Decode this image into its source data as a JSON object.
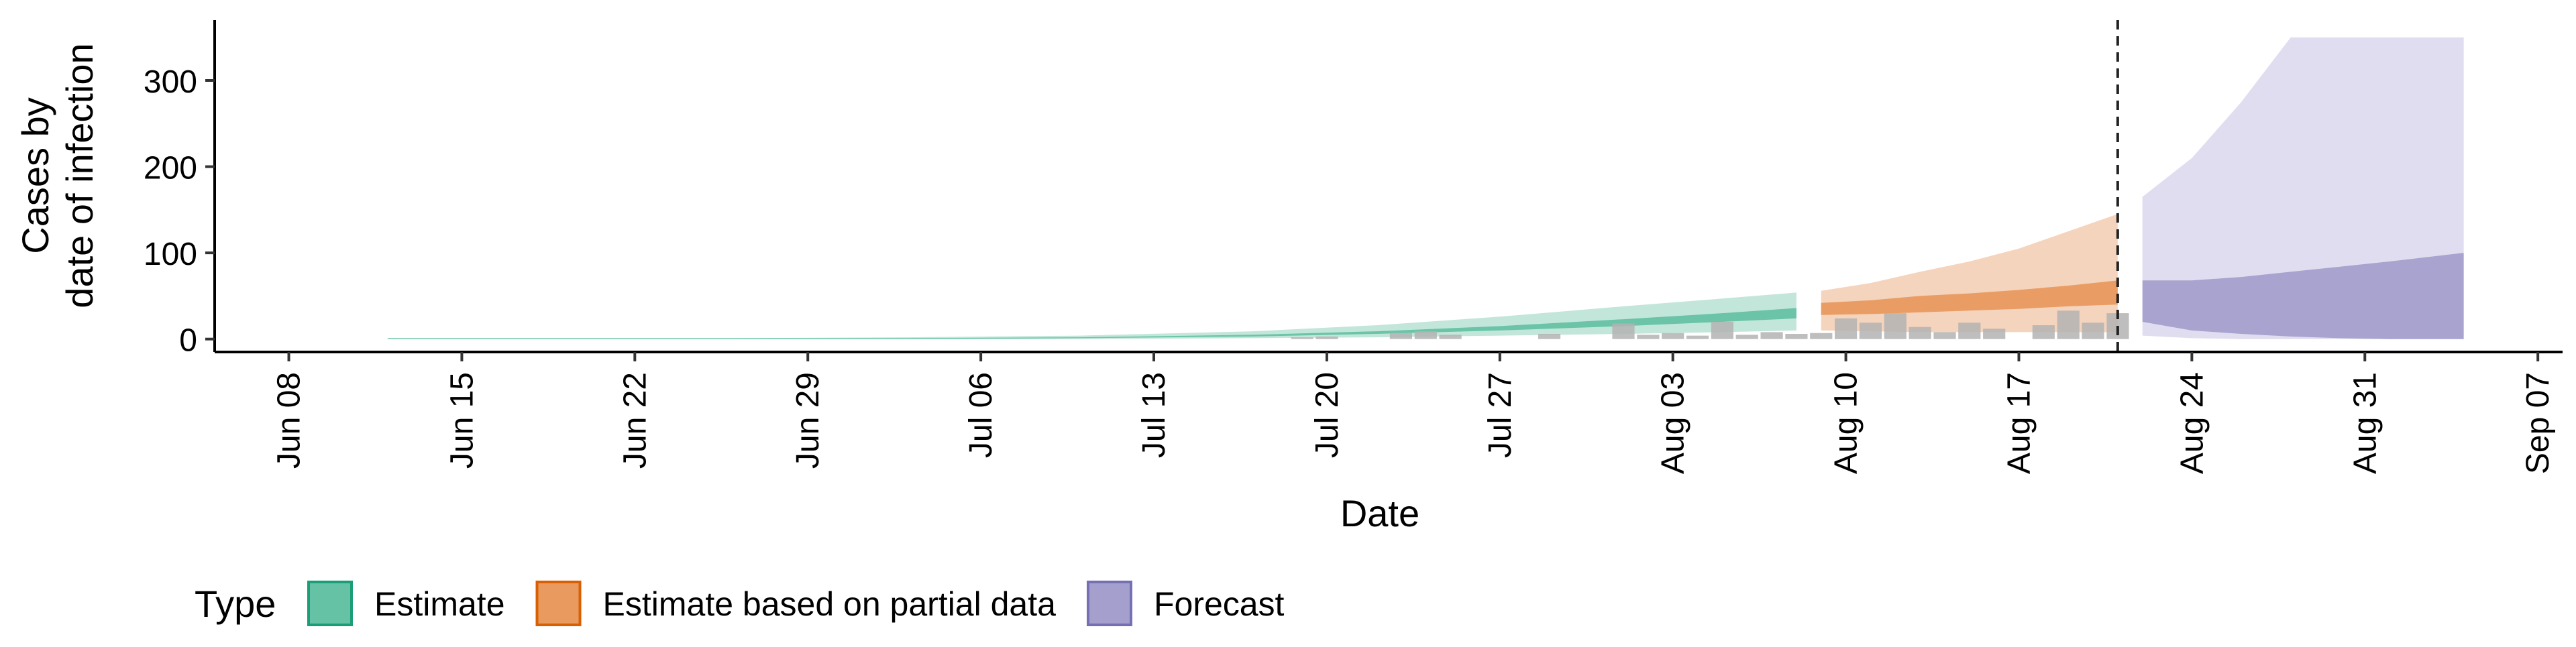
{
  "chart_data": {
    "type": "area",
    "xlabel": "Date",
    "ylabel_lines": [
      "Cases by",
      "date of infection"
    ],
    "x_range": [
      "2020-06-05",
      "2020-09-08"
    ],
    "ylim": [
      -15,
      370
    ],
    "x_ticks": [
      {
        "date": "2020-06-08",
        "label": "Jun 08"
      },
      {
        "date": "2020-06-15",
        "label": "Jun 15"
      },
      {
        "date": "2020-06-22",
        "label": "Jun 22"
      },
      {
        "date": "2020-06-29",
        "label": "Jun 29"
      },
      {
        "date": "2020-07-06",
        "label": "Jul 06"
      },
      {
        "date": "2020-07-13",
        "label": "Jul 13"
      },
      {
        "date": "2020-07-20",
        "label": "Jul 20"
      },
      {
        "date": "2020-07-27",
        "label": "Jul 27"
      },
      {
        "date": "2020-08-03",
        "label": "Aug 03"
      },
      {
        "date": "2020-08-10",
        "label": "Aug 10"
      },
      {
        "date": "2020-08-17",
        "label": "Aug 17"
      },
      {
        "date": "2020-08-24",
        "label": "Aug 24"
      },
      {
        "date": "2020-08-31",
        "label": "Aug 31"
      },
      {
        "date": "2020-09-07",
        "label": "Sep 07"
      }
    ],
    "y_ticks": [
      0,
      100,
      200,
      300
    ],
    "grid": false,
    "vline_date": "2020-08-21",
    "legend": {
      "title": "Type",
      "position": "bottom-left",
      "items": [
        {
          "label": "Estimate",
          "key": "estimate",
          "color": "#66c2a5",
          "border": "#1b9e77"
        },
        {
          "label": "Estimate based on partial data",
          "key": "partial",
          "color": "#e89a5f",
          "border": "#d95f02"
        },
        {
          "label": "Forecast",
          "key": "forecast",
          "color": "#a49fcc",
          "border": "#7570b3"
        }
      ]
    },
    "series": [
      {
        "name": "Estimate",
        "key": "estimate",
        "color_outer": "#b8e2d4",
        "color_inner": "#66c2a5",
        "dates": [
          "2020-06-12",
          "2020-06-19",
          "2020-06-26",
          "2020-07-03",
          "2020-07-10",
          "2020-07-17",
          "2020-07-22",
          "2020-07-27",
          "2020-08-01",
          "2020-08-05",
          "2020-08-08"
        ],
        "outer_lo": [
          0,
          0,
          0,
          0,
          0,
          1,
          2,
          4,
          6,
          8,
          10
        ],
        "outer_hi": [
          1,
          1,
          1,
          2,
          4,
          9,
          16,
          26,
          38,
          47,
          54
        ],
        "inner_lo": [
          0,
          0,
          0,
          0,
          1,
          3,
          6,
          10,
          15,
          20,
          24
        ],
        "inner_hi": [
          1,
          1,
          1,
          1,
          2,
          5,
          9,
          15,
          23,
          30,
          36
        ]
      },
      {
        "name": "Estimate based on partial data",
        "key": "partial",
        "color_outer": "#f3cdb2",
        "color_inner": "#e89a5f",
        "dates": [
          "2020-08-09",
          "2020-08-11",
          "2020-08-13",
          "2020-08-15",
          "2020-08-17",
          "2020-08-19",
          "2020-08-21"
        ],
        "outer_lo": [
          10,
          9,
          8,
          8,
          8,
          8,
          8
        ],
        "outer_hi": [
          56,
          65,
          78,
          90,
          105,
          125,
          145
        ],
        "inner_lo": [
          28,
          29,
          31,
          33,
          35,
          38,
          40
        ],
        "inner_hi": [
          42,
          45,
          50,
          53,
          57,
          62,
          68
        ]
      },
      {
        "name": "Forecast",
        "key": "forecast",
        "color_outer": "#d9d7ec",
        "color_inner": "#a49fcc",
        "dates": [
          "2020-08-22",
          "2020-08-24",
          "2020-08-26",
          "2020-08-28",
          "2020-08-30",
          "2020-09-01",
          "2020-09-04"
        ],
        "outer_lo": [
          4,
          1,
          0,
          0,
          0,
          0,
          0
        ],
        "outer_hi": [
          165,
          210,
          275,
          350,
          350,
          350,
          350
        ],
        "inner_lo": [
          20,
          10,
          6,
          3,
          1,
          0,
          0
        ],
        "inner_hi": [
          68,
          68,
          72,
          78,
          84,
          90,
          100
        ]
      }
    ],
    "reported_cases": [
      {
        "date": "2020-07-19",
        "value": 2
      },
      {
        "date": "2020-07-20",
        "value": 3
      },
      {
        "date": "2020-07-23",
        "value": 7
      },
      {
        "date": "2020-07-24",
        "value": 9
      },
      {
        "date": "2020-07-25",
        "value": 5
      },
      {
        "date": "2020-07-29",
        "value": 6
      },
      {
        "date": "2020-08-01",
        "value": 18
      },
      {
        "date": "2020-08-02",
        "value": 5
      },
      {
        "date": "2020-08-03",
        "value": 7
      },
      {
        "date": "2020-08-04",
        "value": 4
      },
      {
        "date": "2020-08-05",
        "value": 20
      },
      {
        "date": "2020-08-06",
        "value": 5
      },
      {
        "date": "2020-08-07",
        "value": 8
      },
      {
        "date": "2020-08-08",
        "value": 6
      },
      {
        "date": "2020-08-09",
        "value": 7
      },
      {
        "date": "2020-08-10",
        "value": 24
      },
      {
        "date": "2020-08-11",
        "value": 19
      },
      {
        "date": "2020-08-12",
        "value": 30
      },
      {
        "date": "2020-08-13",
        "value": 14
      },
      {
        "date": "2020-08-14",
        "value": 8
      },
      {
        "date": "2020-08-15",
        "value": 19
      },
      {
        "date": "2020-08-16",
        "value": 12
      },
      {
        "date": "2020-08-18",
        "value": 16
      },
      {
        "date": "2020-08-19",
        "value": 33
      },
      {
        "date": "2020-08-20",
        "value": 19
      },
      {
        "date": "2020-08-21",
        "value": 30
      }
    ]
  }
}
